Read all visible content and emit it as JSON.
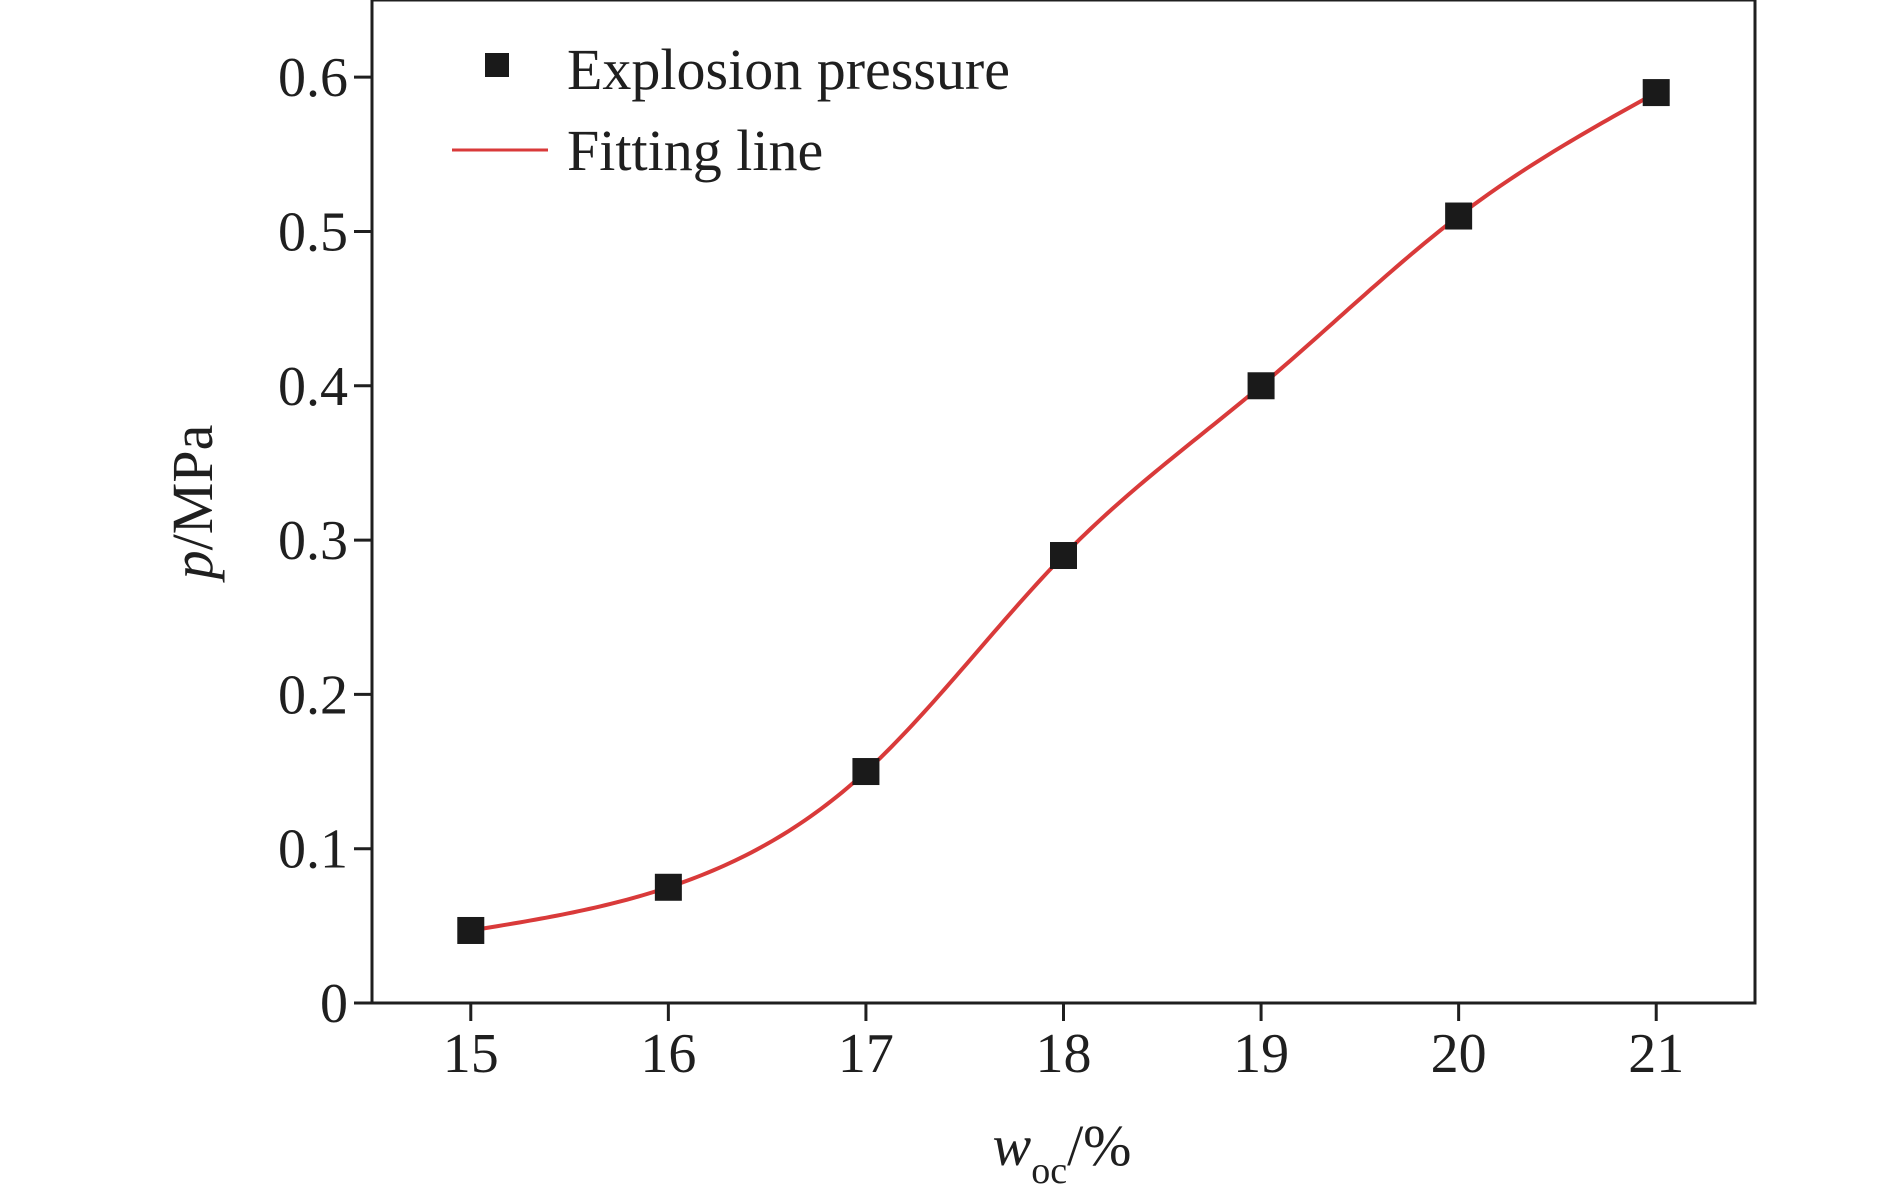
{
  "chart_data": {
    "type": "scatter",
    "x": [
      15,
      16,
      17,
      18,
      19,
      20,
      21
    ],
    "series": [
      {
        "name": "Explosion pressure",
        "kind": "scatter",
        "marker": "square",
        "color": "#1a1a1a",
        "values": [
          0.047,
          0.075,
          0.15,
          0.29,
          0.4,
          0.51,
          0.59
        ]
      },
      {
        "name": "Fitting line",
        "kind": "line",
        "color": "#d93a3a",
        "fit": "sigmoidal curve through the explosion pressure points"
      }
    ],
    "xlabel": {
      "main": "w",
      "subscript": "oc",
      "suffix": "/%"
    },
    "ylabel": {
      "italic": "p",
      "suffix": "/MPa"
    },
    "xlim": [
      14.5,
      21.5
    ],
    "ylim": [
      0,
      0.65
    ],
    "xticks": [
      "15",
      "16",
      "17",
      "18",
      "19",
      "20",
      "21"
    ],
    "yticks": [
      "0",
      "0.1",
      "0.2",
      "0.3",
      "0.4",
      "0.5",
      "0.6"
    ],
    "ytick_values": [
      0,
      0.1,
      0.2,
      0.3,
      0.4,
      0.5,
      0.6
    ],
    "grid": false,
    "legend_position": "top-left"
  }
}
